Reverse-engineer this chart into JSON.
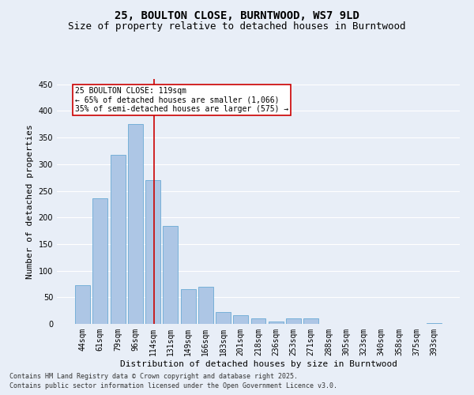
{
  "title1": "25, BOULTON CLOSE, BURNTWOOD, WS7 9LD",
  "title2": "Size of property relative to detached houses in Burntwood",
  "xlabel": "Distribution of detached houses by size in Burntwood",
  "ylabel": "Number of detached properties",
  "categories": [
    "44sqm",
    "61sqm",
    "79sqm",
    "96sqm",
    "114sqm",
    "131sqm",
    "149sqm",
    "166sqm",
    "183sqm",
    "201sqm",
    "218sqm",
    "236sqm",
    "253sqm",
    "271sqm",
    "288sqm",
    "305sqm",
    "323sqm",
    "340sqm",
    "358sqm",
    "375sqm",
    "393sqm"
  ],
  "values": [
    72,
    236,
    318,
    375,
    270,
    184,
    66,
    70,
    22,
    17,
    10,
    5,
    10,
    10,
    0,
    0,
    0,
    0,
    0,
    0,
    1
  ],
  "bar_color": "#adc6e5",
  "bar_edge_color": "#6aaad4",
  "bar_edge_width": 0.6,
  "red_line_color": "#cc0000",
  "red_line_index": 4.08,
  "ylim": [
    0,
    460
  ],
  "yticks": [
    0,
    50,
    100,
    150,
    200,
    250,
    300,
    350,
    400,
    450
  ],
  "background_color": "#e8eef7",
  "annotation_text": "25 BOULTON CLOSE: 119sqm\n← 65% of detached houses are smaller (1,066)\n35% of semi-detached houses are larger (575) →",
  "annotation_box_color": "#ffffff",
  "annotation_box_edge": "#cc0000",
  "footer1": "Contains HM Land Registry data © Crown copyright and database right 2025.",
  "footer2": "Contains public sector information licensed under the Open Government Licence v3.0.",
  "title_fontsize": 10,
  "subtitle_fontsize": 9,
  "axis_label_fontsize": 8,
  "tick_fontsize": 7,
  "annotation_fontsize": 7,
  "footer_fontsize": 6
}
